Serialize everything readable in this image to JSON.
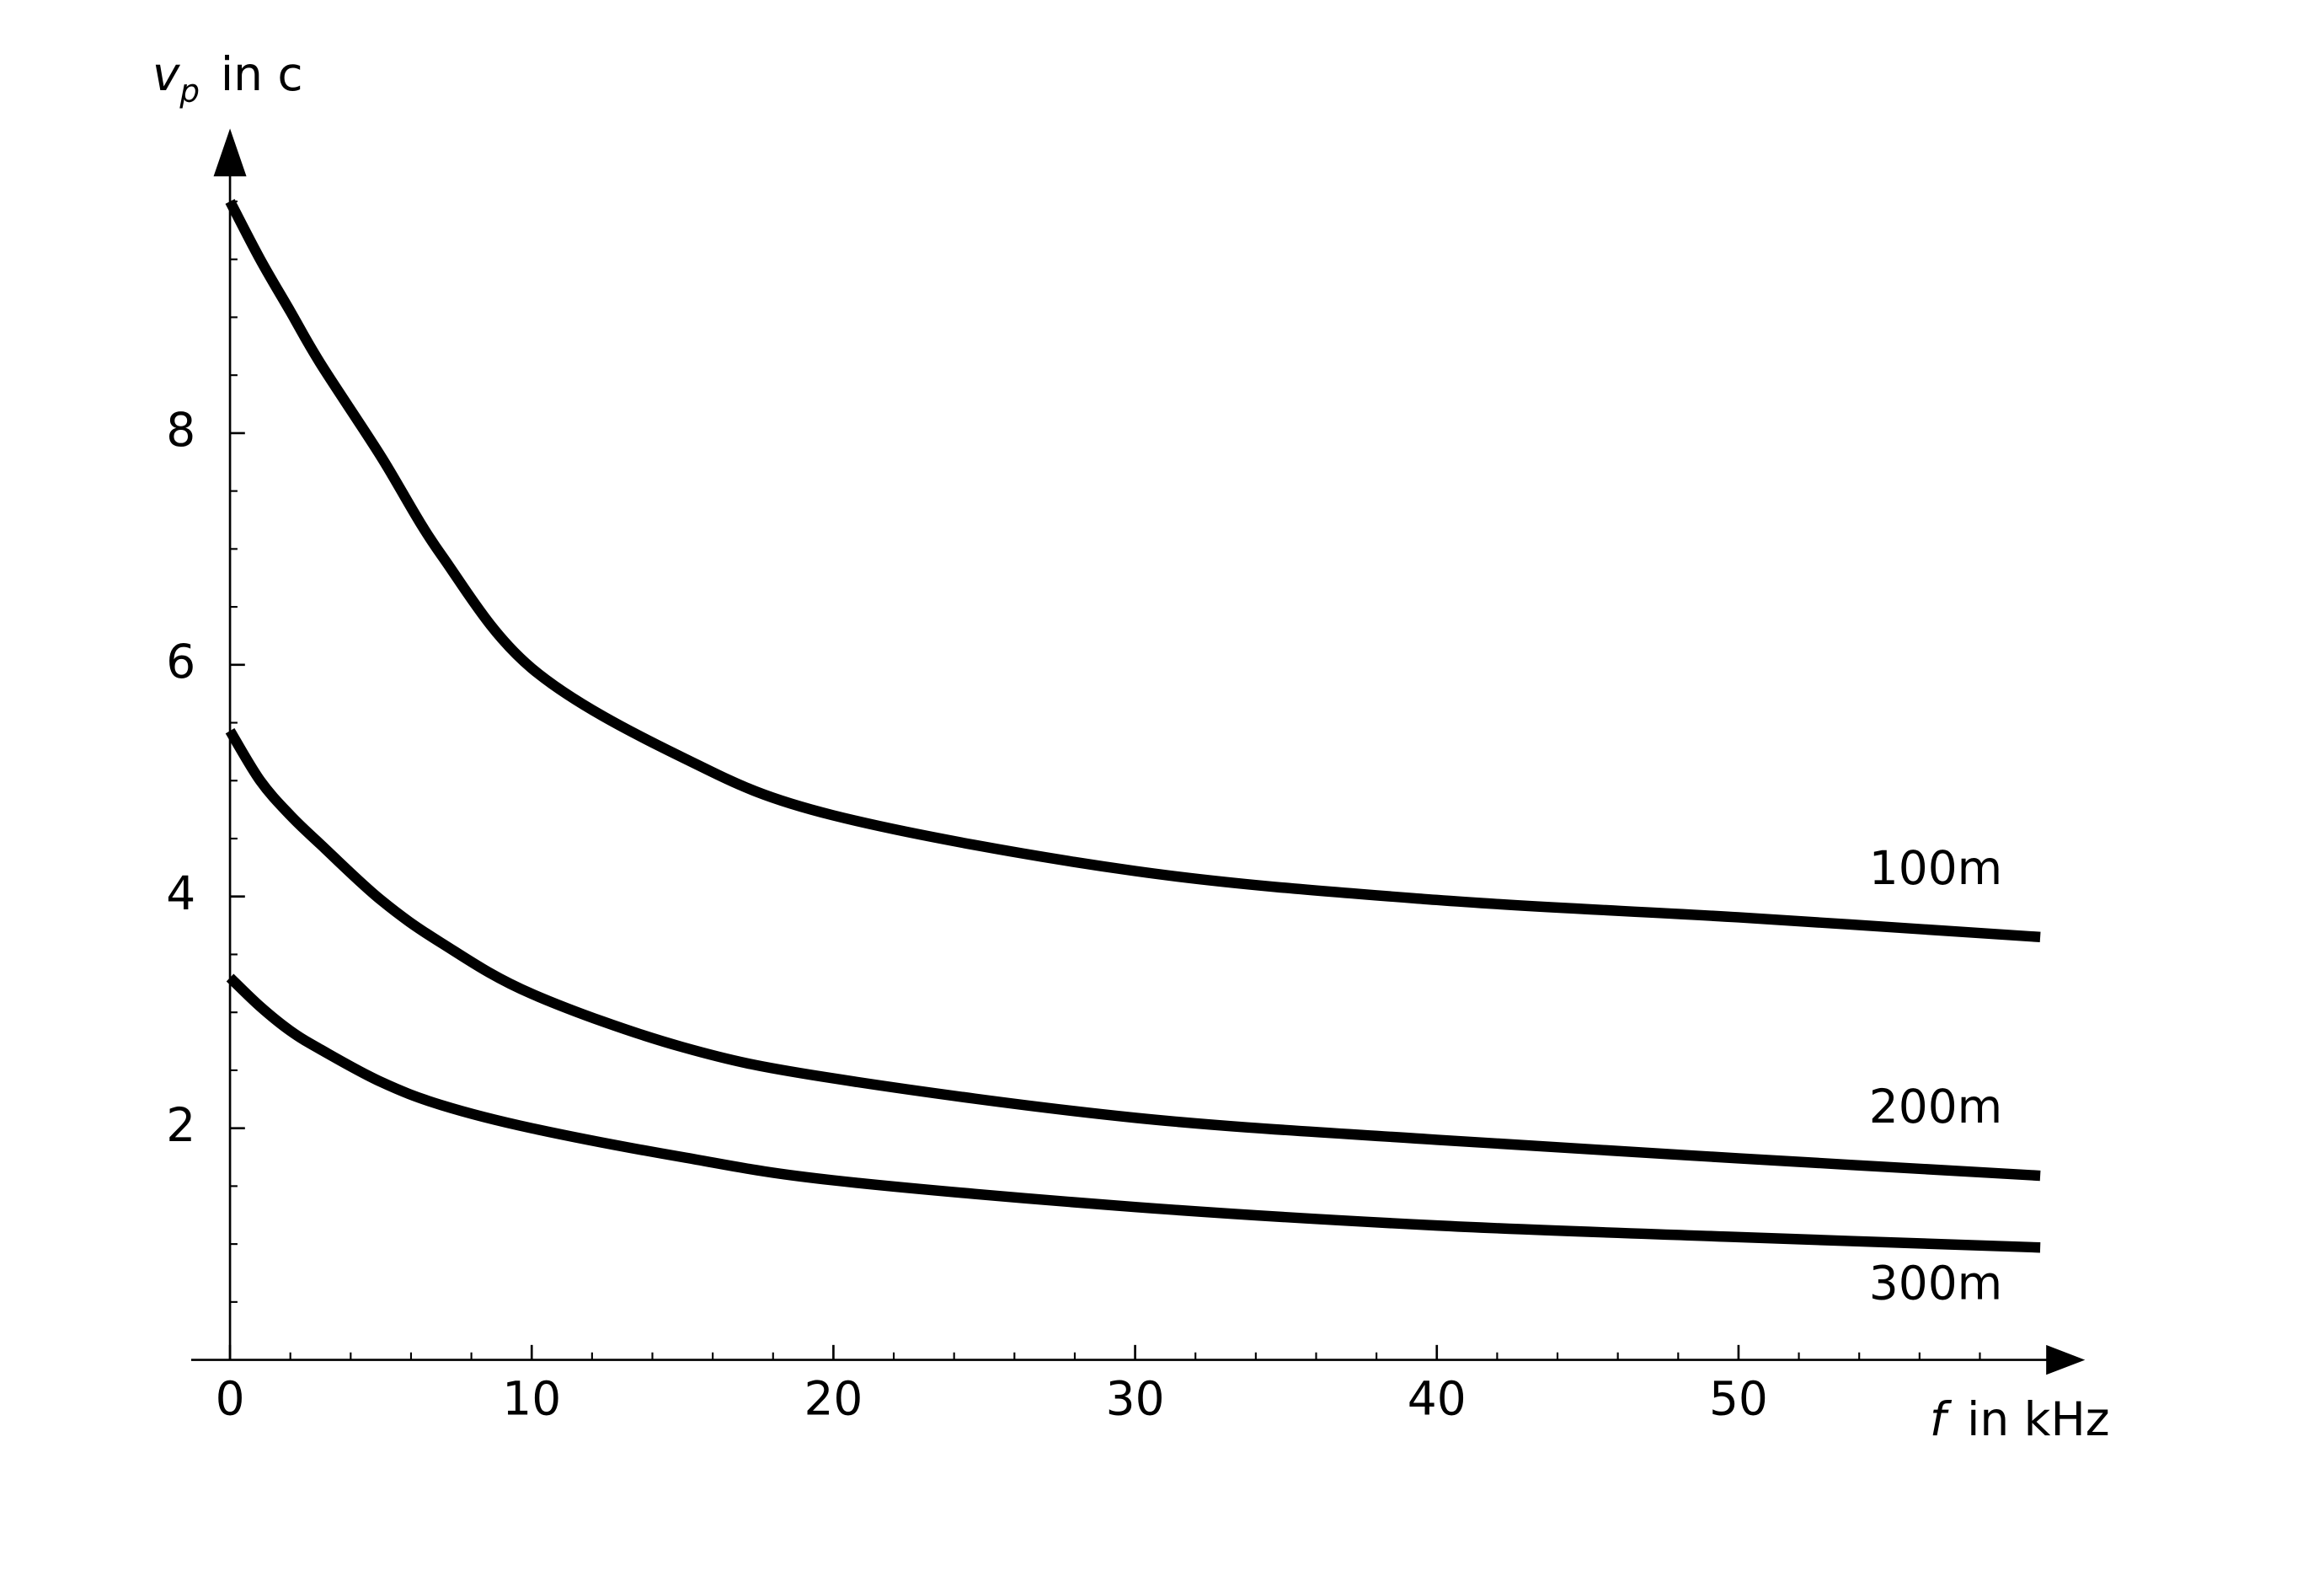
{
  "chart_data": {
    "type": "line",
    "ylabel": {
      "symbol": "v",
      "subscript": "p",
      "text": "in c"
    },
    "xlabel": {
      "symbol": "f",
      "text": "in kHz"
    },
    "x": [
      0,
      1,
      2,
      3,
      5,
      7,
      10,
      15,
      20,
      30,
      40,
      50,
      60
    ],
    "series": [
      {
        "name": "100m",
        "color": "#000000",
        "values": [
          10.0,
          9.5,
          9.05,
          8.6,
          7.8,
          6.95,
          5.97,
          5.2,
          4.7,
          4.22,
          3.97,
          3.82,
          3.65
        ]
      },
      {
        "name": "200m",
        "color": "#000000",
        "values": [
          5.43,
          5.0,
          4.7,
          4.45,
          3.97,
          3.6,
          3.16,
          2.7,
          2.43,
          2.09,
          1.9,
          1.74,
          1.59
        ]
      },
      {
        "name": "300m",
        "color": "#000000",
        "values": [
          3.3,
          3.05,
          2.84,
          2.68,
          2.4,
          2.2,
          2.0,
          1.75,
          1.55,
          1.32,
          1.16,
          1.06,
          0.97
        ]
      }
    ],
    "xlim": [
      0,
      60
    ],
    "ylim": [
      0,
      10.5
    ],
    "xticks": [
      0,
      10,
      20,
      30,
      40,
      50
    ],
    "yticks": [
      2,
      4,
      6,
      8
    ],
    "xminorticks": [
      2,
      4,
      6,
      8,
      12,
      14,
      16,
      18,
      22,
      24,
      26,
      28,
      32,
      34,
      36,
      38,
      42,
      44,
      46,
      48,
      52,
      54,
      56,
      58
    ],
    "yminorticks": [
      0.5,
      1,
      1.5,
      2.5,
      3,
      3.5,
      4.5,
      5,
      5.5,
      6.5,
      7,
      7.5,
      8.5,
      9,
      9.5,
      10
    ],
    "grid": false
  }
}
